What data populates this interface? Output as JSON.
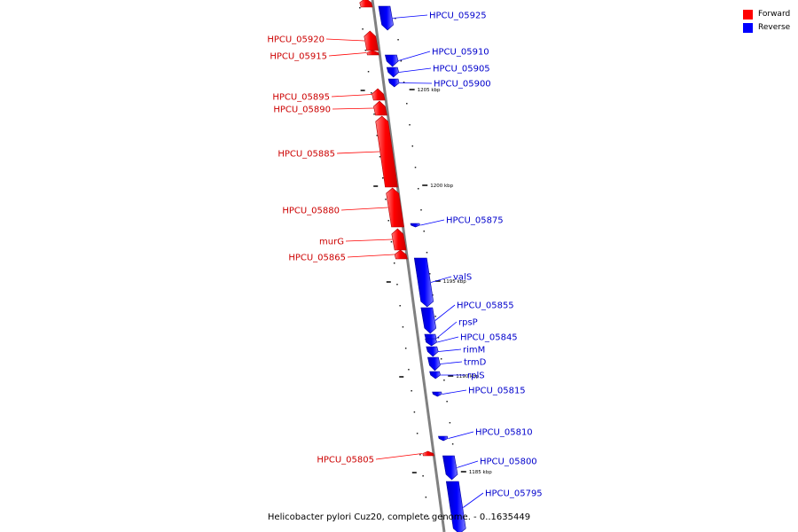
{
  "legend": [
    {
      "label": "Forward",
      "color": "#ff0000"
    },
    {
      "label": "Reverse",
      "color": "#0000ff"
    }
  ],
  "colors": {
    "forward": "#ff0000",
    "reverse": "#0000ff",
    "axis": "#808080",
    "tick": "#000000"
  },
  "caption": "Helicobacter pylori Cuz20, complete genome. - 0..1635449",
  "genes": [
    {
      "label": "",
      "strand": "forward"
    },
    {
      "label": "HPCU_05925",
      "strand": "reverse"
    },
    {
      "label": "HPCU_05920",
      "strand": "forward"
    },
    {
      "label": "HPCU_05915",
      "strand": "forward"
    },
    {
      "label": "HPCU_05910",
      "strand": "reverse"
    },
    {
      "label": "HPCU_05905",
      "strand": "reverse"
    },
    {
      "label": "HPCU_05900",
      "strand": "reverse"
    },
    {
      "label": "HPCU_05895",
      "strand": "forward"
    },
    {
      "label": "HPCU_05890",
      "strand": "forward"
    },
    {
      "label": "HPCU_05885",
      "strand": "forward"
    },
    {
      "label": "HPCU_05880",
      "strand": "forward"
    },
    {
      "label": "HPCU_05875",
      "strand": "reverse"
    },
    {
      "label": "murG",
      "strand": "forward"
    },
    {
      "label": "HPCU_05865",
      "strand": "forward"
    },
    {
      "label": "valS",
      "strand": "reverse"
    },
    {
      "label": "HPCU_05855",
      "strand": "reverse"
    },
    {
      "label": "rpsP",
      "strand": "reverse"
    },
    {
      "label": "HPCU_05845",
      "strand": "reverse"
    },
    {
      "label": "rimM",
      "strand": "reverse"
    },
    {
      "label": "trmD",
      "strand": "reverse"
    },
    {
      "label": "rplS",
      "strand": "reverse"
    },
    {
      "label": "HPCU_05815",
      "strand": "reverse"
    },
    {
      "label": "HPCU_05810",
      "strand": "reverse"
    },
    {
      "label": "HPCU_05805",
      "strand": "forward"
    },
    {
      "label": "HPCU_05800",
      "strand": "reverse"
    },
    {
      "label": "HPCU_05795",
      "strand": "reverse"
    }
  ],
  "scale_ticks": [
    "1205 kbp",
    "1200 kbp",
    "1195 kbp",
    "1190 kbp",
    "1185 kbp"
  ]
}
